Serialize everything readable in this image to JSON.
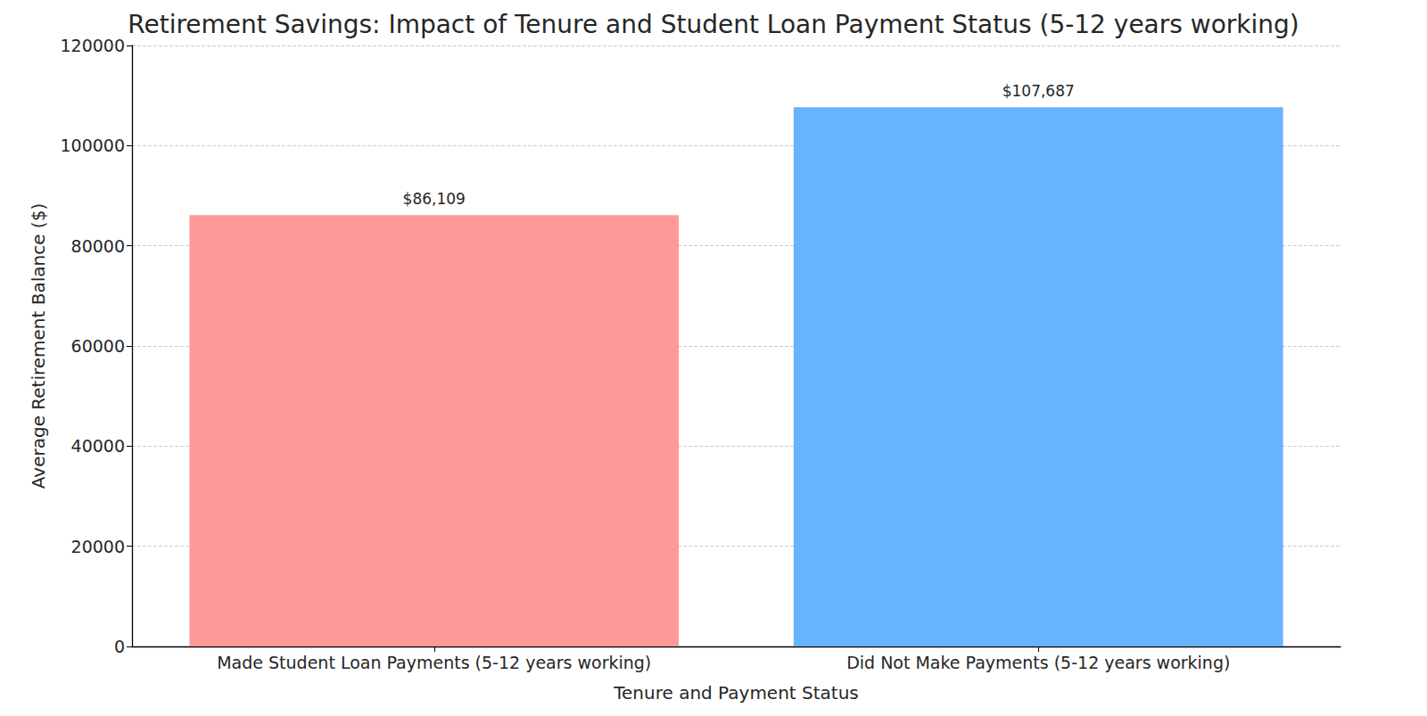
{
  "chart_data": {
    "type": "bar",
    "title": "Retirement Savings: Impact of Tenure and Student Loan Payment Status (5-12 years working)",
    "x_label": "Tenure and Payment Status",
    "y_label": "Average Retirement Balance ($)",
    "categories": [
      "Made Student Loan Payments (5-12 years working)",
      "Did Not Make Payments (5-12 years working)"
    ],
    "values": [
      86109,
      107687
    ],
    "value_labels": [
      "$86,109",
      "$107,687"
    ],
    "colors": [
      "#ff9999",
      "#66b3ff"
    ],
    "ylim": [
      0,
      120000
    ],
    "yticks": [
      0,
      20000,
      40000,
      60000,
      80000,
      100000,
      120000
    ],
    "grid": true,
    "data_labels": true
  }
}
